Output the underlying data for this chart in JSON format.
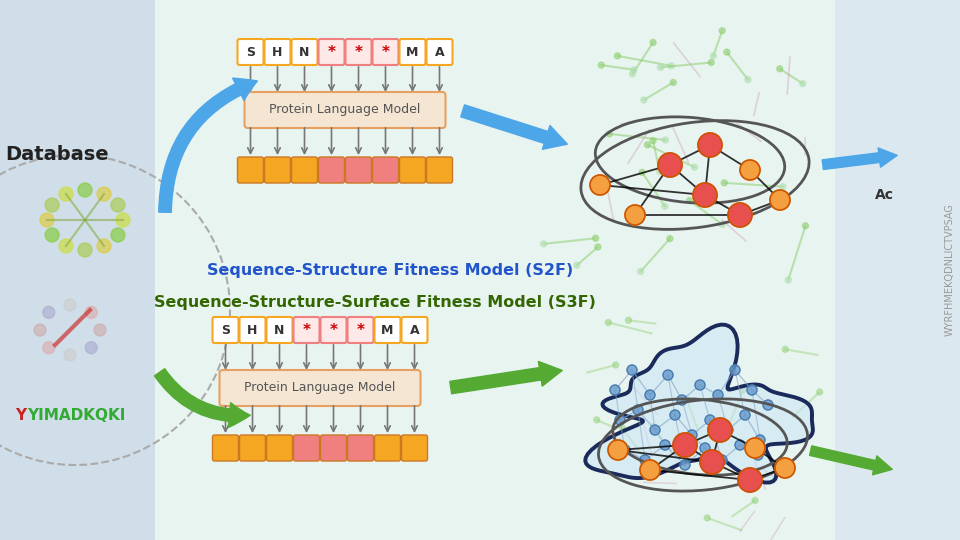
{
  "bg_color": "#dce8f0",
  "center_bg": "#e8f2ee",
  "right_bg": "#dce8f0",
  "seq_tokens": [
    "S",
    "H",
    "N",
    "*",
    "*",
    "*",
    "M",
    "A"
  ],
  "plm_text": "Protein Language Model",
  "plm_box_color": "#f5e6d3",
  "out_colors": [
    "#f5a623",
    "#f5a623",
    "#f5a623",
    "#f08080",
    "#f08080",
    "#f08080",
    "#f5a623",
    "#f5a623"
  ],
  "tok_normal_fc": "#ffffff",
  "tok_mutant_fc": "#ffe8e8",
  "tok_normal_ec": "#f5a623",
  "tok_mutant_ec": "#f08080",
  "tok_normal_color": "#333333",
  "tok_mutant_color": "#cc0000",
  "database_text": "Database",
  "seq_label": "YIMADKQKI",
  "seq_label_red": "Y",
  "vertical_text": "WYRFHMEKQDNLICTVPSAG",
  "s2f_color": "#2255cc",
  "s3f_color": "#336600",
  "blue_arrow_color": "#4da6e8",
  "green_arrow_color": "#55aa33",
  "node_orange": "#f5a040",
  "node_red": "#e85050",
  "node_blue": "#6699cc",
  "surface_outline_color": "#1a2a5a",
  "ellipse_color": "#555555",
  "arrow_color": "#666666"
}
